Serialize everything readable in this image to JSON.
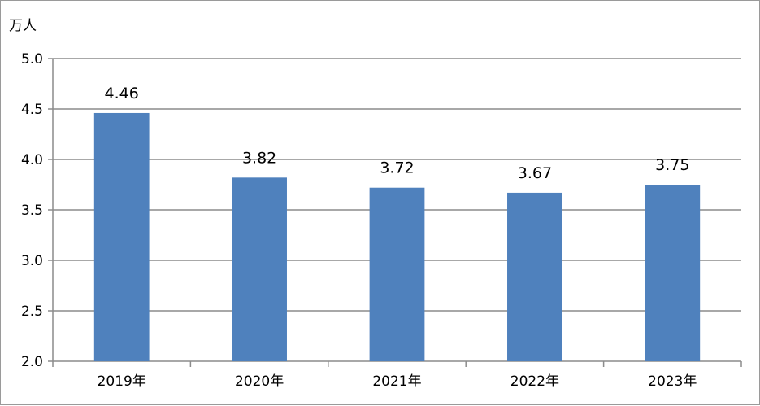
{
  "chart_data": {
    "type": "bar",
    "title": "",
    "xlabel": "",
    "ylabel": "万人",
    "categories": [
      "2019年",
      "2020年",
      "2021年",
      "2022年",
      "2023年"
    ],
    "values": [
      4.46,
      3.82,
      3.72,
      3.67,
      3.75
    ],
    "data_labels": [
      "4.46",
      "3.82",
      "3.72",
      "3.67",
      "3.75"
    ],
    "ylim": [
      2.0,
      5.0
    ],
    "yticks": [
      2.0,
      2.5,
      3.0,
      3.5,
      4.0,
      4.5,
      5.0
    ],
    "ytick_labels": [
      "2.0",
      "2.5",
      "3.0",
      "3.5",
      "4.0",
      "4.5",
      "5.0"
    ],
    "bar_color": "#4f81bd",
    "grid": true,
    "legend": "none"
  }
}
